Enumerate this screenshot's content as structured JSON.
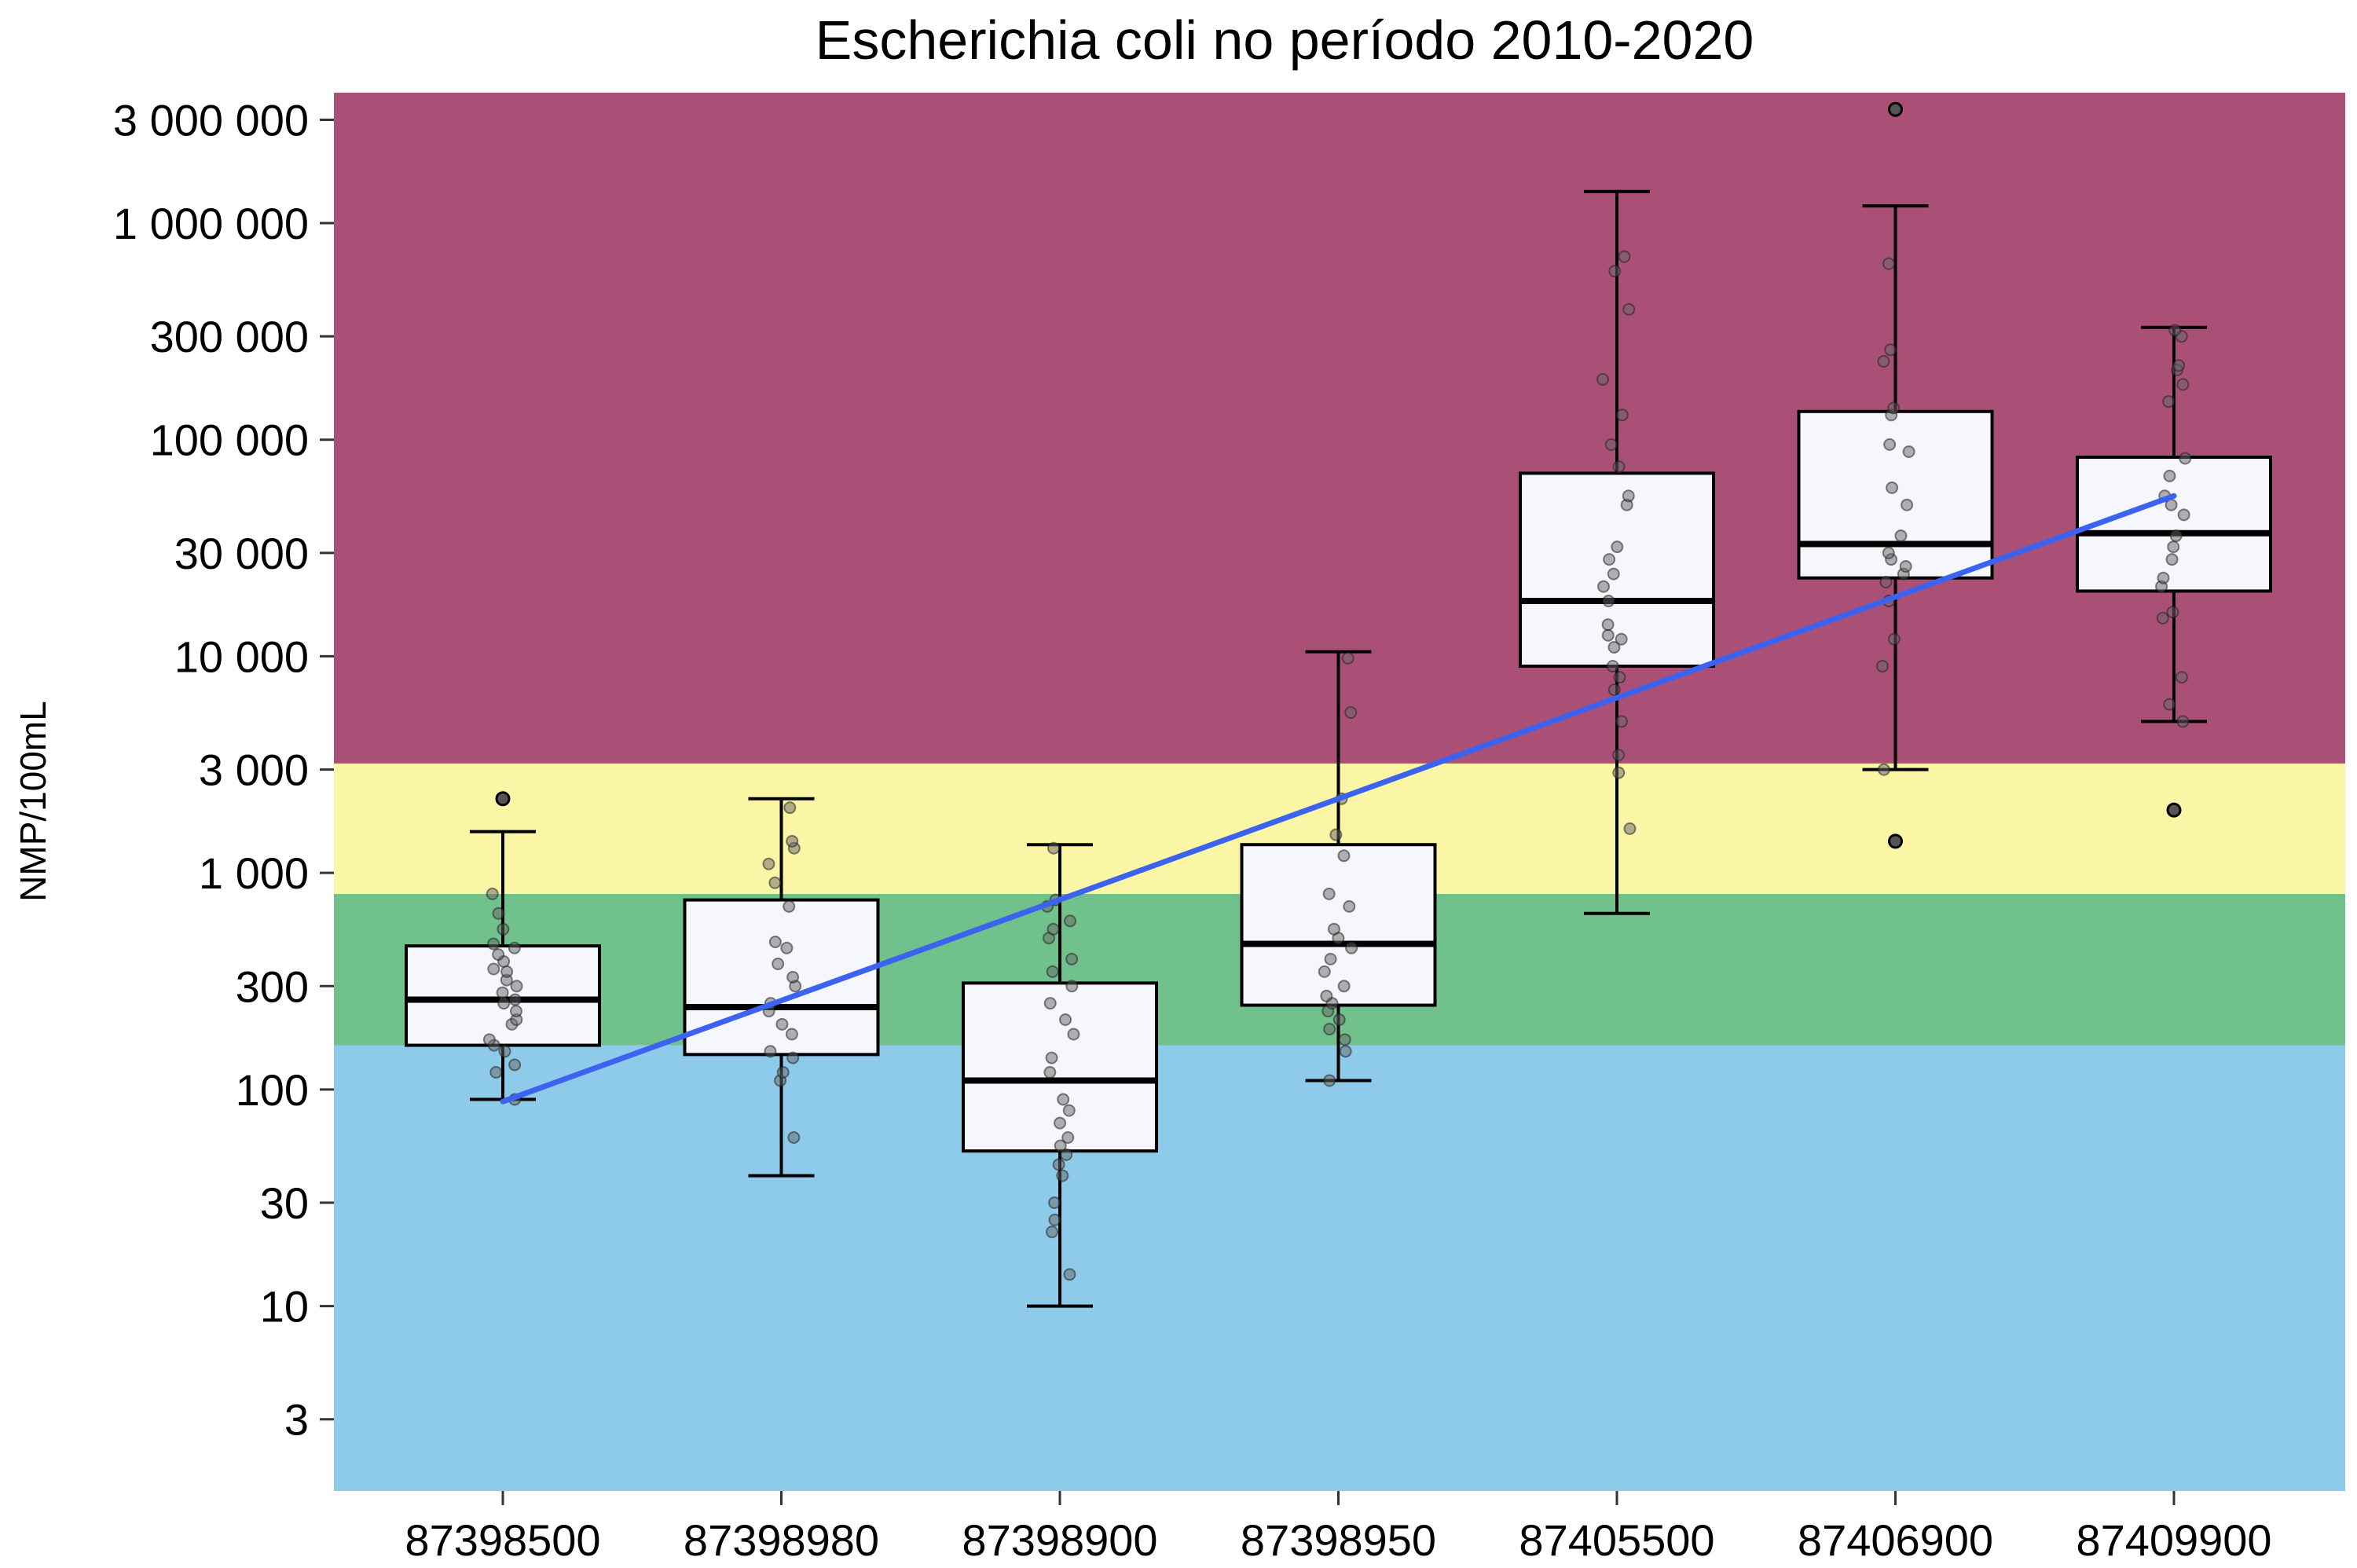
{
  "chart_data": {
    "type": "box",
    "title": "Escherichia coli no período 2010-2020",
    "xlabel": "",
    "ylabel": "NMP/100mL",
    "y_scale": "log",
    "ylim": [
      1.4,
      4000000
    ],
    "y_ticks": [
      3,
      10,
      30,
      100,
      300,
      1000,
      3000,
      10000,
      30000,
      100000,
      300000,
      1000000,
      3000000
    ],
    "y_tick_labels": [
      "3",
      "10",
      "30",
      "100",
      "300",
      "1 000",
      "3 000",
      "10 000",
      "30 000",
      "100 000",
      "300 000",
      "1 000 000",
      "3 000 000"
    ],
    "bands": [
      {
        "from": 1.4,
        "to": 160,
        "color": "#8ecae9"
      },
      {
        "from": 160,
        "to": 800,
        "color": "#70c18b"
      },
      {
        "from": 800,
        "to": 3200,
        "color": "#fbf5a6"
      },
      {
        "from": 3200,
        "to": 4000000,
        "color": "#aa5076"
      }
    ],
    "colors": {
      "box_fill": "#f6f7fc",
      "trend": "#3b63f0",
      "point": "#666666"
    },
    "categories": [
      "87398500",
      "87398980",
      "87398900",
      "87398950",
      "87405500",
      "87406900",
      "87409900"
    ],
    "boxes": [
      {
        "whisker_low": 90,
        "q1": 160,
        "median": 260,
        "q3": 460,
        "whisker_high": 1550,
        "outliers": [
          2200
        ]
      },
      {
        "whisker_low": 40,
        "q1": 145,
        "median": 240,
        "q3": 750,
        "whisker_high": 2200,
        "outliers": []
      },
      {
        "whisker_low": 10,
        "q1": 52,
        "median": 110,
        "q3": 310,
        "whisker_high": 1350,
        "outliers": []
      },
      {
        "whisker_low": 110,
        "q1": 245,
        "median": 470,
        "q3": 1350,
        "whisker_high": 10500,
        "outliers": []
      },
      {
        "whisker_low": 650,
        "q1": 9000,
        "median": 18000,
        "q3": 70000,
        "whisker_high": 1400000,
        "outliers": []
      },
      {
        "whisker_low": 3000,
        "q1": 23000,
        "median": 33000,
        "q3": 135000,
        "whisker_high": 1200000,
        "outliers": [
          1400,
          3350000
        ]
      },
      {
        "whisker_low": 5000,
        "q1": 20000,
        "median": 37000,
        "q3": 83000,
        "whisker_high": 330000,
        "outliers": [
          1950
        ]
      }
    ],
    "points": [
      [
        90,
        120,
        130,
        150,
        160,
        170,
        200,
        210,
        230,
        250,
        260,
        280,
        300,
        320,
        350,
        360,
        390,
        420,
        450,
        470,
        550,
        650,
        800
      ],
      [
        60,
        110,
        120,
        140,
        150,
        180,
        200,
        230,
        250,
        300,
        330,
        380,
        450,
        480,
        700,
        900,
        1100,
        1300,
        1400,
        2000
      ],
      [
        14,
        22,
        25,
        30,
        40,
        45,
        50,
        55,
        60,
        70,
        80,
        90,
        120,
        140,
        180,
        210,
        250,
        300,
        350,
        400,
        500,
        550,
        600,
        700,
        750,
        1300
      ],
      [
        110,
        150,
        170,
        190,
        210,
        230,
        250,
        270,
        300,
        350,
        400,
        450,
        500,
        550,
        700,
        800,
        1200,
        1500,
        2200,
        5500,
        9800
      ],
      [
        1600,
        2900,
        3500,
        5000,
        7000,
        8000,
        9000,
        11000,
        12000,
        12500,
        14000,
        18000,
        21000,
        24000,
        28000,
        32000,
        50000,
        55000,
        75000,
        95000,
        130000,
        190000,
        400000,
        600000,
        700000
      ],
      [
        3000,
        9000,
        12000,
        18000,
        22000,
        24000,
        26000,
        28000,
        30000,
        36000,
        50000,
        60000,
        88000,
        95000,
        130000,
        140000,
        230000,
        260000,
        650000
      ],
      [
        5000,
        6000,
        8000,
        15000,
        16000,
        21000,
        23000,
        28000,
        32000,
        36000,
        45000,
        50000,
        55000,
        68000,
        82000,
        150000,
        180000,
        210000,
        220000,
        300000,
        320000
      ]
    ],
    "trend_line": {
      "from": [
        1,
        88
      ],
      "to": [
        7,
        55000
      ]
    },
    "grid": false,
    "legend": "none"
  }
}
